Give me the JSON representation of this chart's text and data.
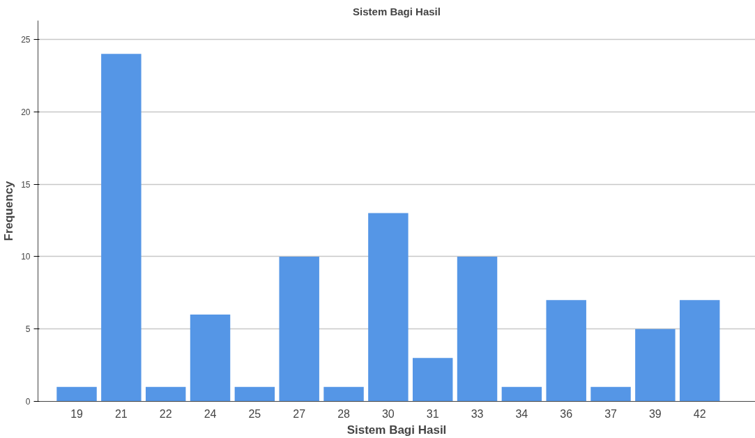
{
  "chart_data": {
    "type": "bar",
    "title": "Sistem Bagi Hasil",
    "xlabel": "Sistem Bagi Hasil",
    "ylabel": "Frequency",
    "categories": [
      "19",
      "21",
      "22",
      "24",
      "25",
      "27",
      "28",
      "30",
      "31",
      "33",
      "34",
      "36",
      "37",
      "39",
      "42"
    ],
    "values": [
      1,
      24,
      1,
      6,
      1,
      10,
      1,
      13,
      3,
      10,
      1,
      7,
      1,
      5,
      7
    ],
    "color": "#5596e6",
    "ylim": [
      0,
      26.3
    ],
    "yticks": [
      0,
      5,
      10,
      15,
      20,
      25
    ],
    "grid": "y"
  }
}
